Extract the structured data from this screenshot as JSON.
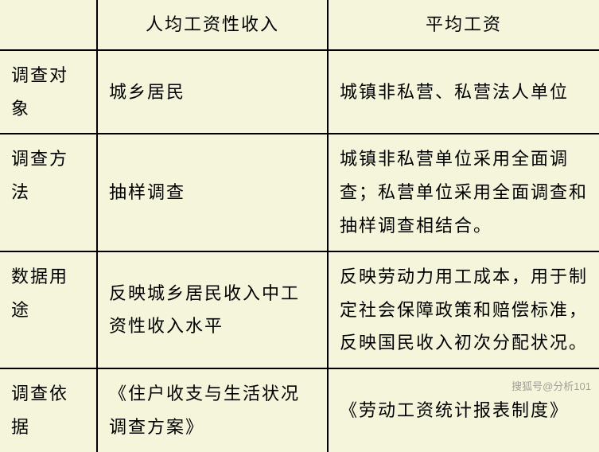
{
  "table": {
    "background_color": "#f5f5dc",
    "border_color": "#000000",
    "text_color": "#000000",
    "font_family": "KaiTi",
    "font_size": 22,
    "columns": [
      {
        "key": "label",
        "header": ""
      },
      {
        "key": "col1",
        "header": "人均工资性收入"
      },
      {
        "key": "col2",
        "header": "平均工资"
      }
    ],
    "rows": [
      {
        "label": "调查对象",
        "col1": "城乡居民",
        "col2": "城镇非私营、私营法人单位"
      },
      {
        "label": "调查方法",
        "col1": "抽样调查",
        "col2": "城镇非私营单位采用全面调查；私营单位采用全面调查和抽样调查相结合。"
      },
      {
        "label": "数据用途",
        "col1": "反映城乡居民收入中工资性收入水平",
        "col2": "反映劳动力用工成本，用于制定社会保障政策和赔偿标准，反映国民收入初次分配状况。"
      },
      {
        "label": "调查依据",
        "col1": "《住户收支与生活状况调查方案》",
        "col2": "《劳动工资统计报表制度》"
      }
    ]
  },
  "watermark": "搜狐号@分析101"
}
